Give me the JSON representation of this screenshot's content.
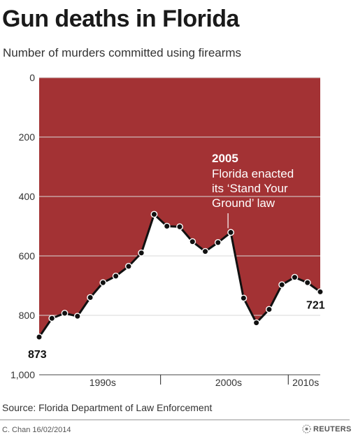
{
  "header": {
    "title": "Gun deaths in Florida",
    "subtitle": "Number of murders committed using firearms"
  },
  "footer": {
    "source": "Source: Florida Department of Law Enforcement",
    "credit": "C. Chan  16/02/2014",
    "brand": "REUTERS"
  },
  "colors": {
    "fill": "#a33234",
    "line": "#111111",
    "background": "#ffffff",
    "grid": "#d9d9d9"
  },
  "chart_data": {
    "type": "area",
    "title": "Gun deaths in Florida",
    "subtitle": "Number of murders committed using firearms",
    "xlabel": "",
    "ylabel": "",
    "y_inverted": true,
    "ylim": [
      0,
      1000
    ],
    "yticks": [
      0,
      200,
      400,
      600,
      800,
      1000
    ],
    "ytick_labels": [
      "0",
      "200",
      "400",
      "600",
      "800",
      "1,000"
    ],
    "x_decade_labels": [
      "1990s",
      "2000s",
      "2010s"
    ],
    "x_dividers": [
      1999.5,
      2009.5
    ],
    "grid": true,
    "x": [
      1990,
      1991,
      1992,
      1993,
      1994,
      1995,
      1996,
      1997,
      1998,
      1999,
      2000,
      2001,
      2002,
      2003,
      2004,
      2005,
      2006,
      2007,
      2008,
      2009,
      2010,
      2011,
      2012
    ],
    "values": [
      873,
      810,
      793,
      803,
      740,
      690,
      668,
      635,
      590,
      460,
      500,
      502,
      552,
      585,
      555,
      521,
      742,
      825,
      780,
      697,
      672,
      690,
      721
    ],
    "labels": [
      {
        "x": 1990,
        "text": "873"
      },
      {
        "x": 2012,
        "text": "721"
      }
    ],
    "annotation": {
      "x": 2005,
      "year": "2005",
      "lines": [
        "Florida enacted",
        "its ‘Stand Your",
        "Ground’ law"
      ]
    }
  }
}
